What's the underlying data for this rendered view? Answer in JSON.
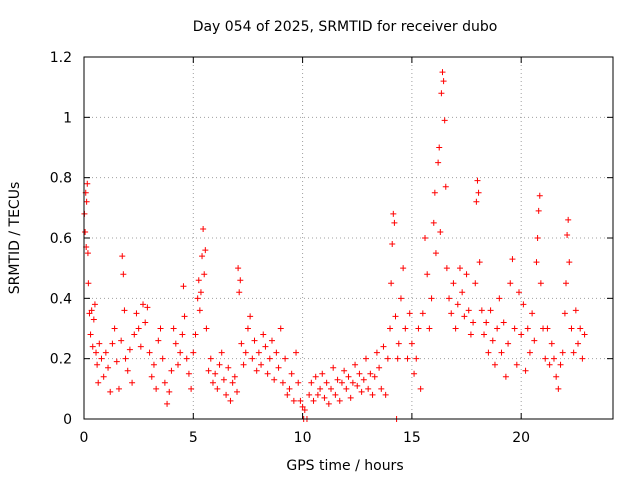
{
  "chart_data": {
    "type": "scatter",
    "title": "Day 054 of 2025, SRMTID for receiver dubo",
    "xlabel": "GPS time / hours",
    "ylabel": "SRMTID / TECUs",
    "xlim": [
      0,
      24.2
    ],
    "ylim": [
      0,
      1.2
    ],
    "x_ticks": [
      0,
      5,
      10,
      15,
      20
    ],
    "x_tick_labels": [
      "0",
      "5",
      "10",
      "15",
      "20"
    ],
    "y_ticks": [
      0,
      0.2,
      0.4,
      0.6,
      0.8,
      1.0,
      1.2
    ],
    "y_tick_labels": [
      "0",
      "0.2",
      "0.4",
      "0.6",
      "0.8",
      "1",
      "1.2"
    ],
    "grid": true,
    "marker": "+",
    "color": "#ff0000",
    "series": [
      {
        "name": "SRMTID",
        "points": [
          [
            0.02,
            0.68
          ],
          [
            0.05,
            0.62
          ],
          [
            0.08,
            0.75
          ],
          [
            0.1,
            0.57
          ],
          [
            0.12,
            0.72
          ],
          [
            0.15,
            0.78
          ],
          [
            0.18,
            0.55
          ],
          [
            0.2,
            0.45
          ],
          [
            0.25,
            0.35
          ],
          [
            0.3,
            0.28
          ],
          [
            0.35,
            0.36
          ],
          [
            0.4,
            0.24
          ],
          [
            0.45,
            0.33
          ],
          [
            0.5,
            0.38
          ],
          [
            0.55,
            0.22
          ],
          [
            0.6,
            0.18
          ],
          [
            0.65,
            0.12
          ],
          [
            0.7,
            0.25
          ],
          [
            0.8,
            0.2
          ],
          [
            0.9,
            0.14
          ],
          [
            1.0,
            0.22
          ],
          [
            1.1,
            0.17
          ],
          [
            1.2,
            0.09
          ],
          [
            1.3,
            0.25
          ],
          [
            1.4,
            0.3
          ],
          [
            1.5,
            0.19
          ],
          [
            1.6,
            0.1
          ],
          [
            1.7,
            0.26
          ],
          [
            1.75,
            0.54
          ],
          [
            1.8,
            0.48
          ],
          [
            1.85,
            0.36
          ],
          [
            1.9,
            0.2
          ],
          [
            2.0,
            0.16
          ],
          [
            2.1,
            0.23
          ],
          [
            2.2,
            0.12
          ],
          [
            2.3,
            0.28
          ],
          [
            2.4,
            0.35
          ],
          [
            2.5,
            0.3
          ],
          [
            2.6,
            0.24
          ],
          [
            2.7,
            0.38
          ],
          [
            2.8,
            0.32
          ],
          [
            2.9,
            0.37
          ],
          [
            3.0,
            0.22
          ],
          [
            3.1,
            0.14
          ],
          [
            3.2,
            0.18
          ],
          [
            3.3,
            0.1
          ],
          [
            3.4,
            0.26
          ],
          [
            3.5,
            0.3
          ],
          [
            3.6,
            0.2
          ],
          [
            3.7,
            0.12
          ],
          [
            3.8,
            0.05
          ],
          [
            3.9,
            0.09
          ],
          [
            4.0,
            0.16
          ],
          [
            4.1,
            0.3
          ],
          [
            4.2,
            0.25
          ],
          [
            4.3,
            0.18
          ],
          [
            4.4,
            0.22
          ],
          [
            4.5,
            0.28
          ],
          [
            4.55,
            0.44
          ],
          [
            4.6,
            0.34
          ],
          [
            4.7,
            0.2
          ],
          [
            4.8,
            0.15
          ],
          [
            4.9,
            0.1
          ],
          [
            5.0,
            0.22
          ],
          [
            5.1,
            0.28
          ],
          [
            5.2,
            0.4
          ],
          [
            5.25,
            0.46
          ],
          [
            5.3,
            0.36
          ],
          [
            5.35,
            0.42
          ],
          [
            5.4,
            0.54
          ],
          [
            5.45,
            0.63
          ],
          [
            5.5,
            0.48
          ],
          [
            5.55,
            0.56
          ],
          [
            5.6,
            0.3
          ],
          [
            5.7,
            0.16
          ],
          [
            5.8,
            0.2
          ],
          [
            5.9,
            0.12
          ],
          [
            6.0,
            0.15
          ],
          [
            6.1,
            0.1
          ],
          [
            6.2,
            0.18
          ],
          [
            6.3,
            0.22
          ],
          [
            6.4,
            0.13
          ],
          [
            6.5,
            0.08
          ],
          [
            6.6,
            0.17
          ],
          [
            6.7,
            0.06
          ],
          [
            6.8,
            0.12
          ],
          [
            6.9,
            0.14
          ],
          [
            7.0,
            0.09
          ],
          [
            7.05,
            0.5
          ],
          [
            7.1,
            0.42
          ],
          [
            7.15,
            0.46
          ],
          [
            7.2,
            0.25
          ],
          [
            7.3,
            0.18
          ],
          [
            7.4,
            0.22
          ],
          [
            7.5,
            0.3
          ],
          [
            7.6,
            0.34
          ],
          [
            7.7,
            0.2
          ],
          [
            7.8,
            0.26
          ],
          [
            7.9,
            0.16
          ],
          [
            8.0,
            0.22
          ],
          [
            8.1,
            0.18
          ],
          [
            8.2,
            0.28
          ],
          [
            8.3,
            0.24
          ],
          [
            8.4,
            0.15
          ],
          [
            8.5,
            0.2
          ],
          [
            8.6,
            0.26
          ],
          [
            8.7,
            0.13
          ],
          [
            8.8,
            0.22
          ],
          [
            8.9,
            0.17
          ],
          [
            9.0,
            0.3
          ],
          [
            9.1,
            0.12
          ],
          [
            9.2,
            0.2
          ],
          [
            9.3,
            0.08
          ],
          [
            9.4,
            0.1
          ],
          [
            9.5,
            0.15
          ],
          [
            9.6,
            0.06
          ],
          [
            9.7,
            0.22
          ],
          [
            9.8,
            0.12
          ],
          [
            9.9,
            0.06
          ],
          [
            10.0,
            0.04
          ],
          [
            10.05,
            0.0
          ],
          [
            10.1,
            0.03
          ],
          [
            10.2,
            0.0
          ],
          [
            10.3,
            0.08
          ],
          [
            10.4,
            0.12
          ],
          [
            10.5,
            0.06
          ],
          [
            10.6,
            0.14
          ],
          [
            10.7,
            0.08
          ],
          [
            10.8,
            0.1
          ],
          [
            10.9,
            0.15
          ],
          [
            11.0,
            0.07
          ],
          [
            11.1,
            0.12
          ],
          [
            11.2,
            0.05
          ],
          [
            11.3,
            0.1
          ],
          [
            11.4,
            0.17
          ],
          [
            11.5,
            0.08
          ],
          [
            11.6,
            0.13
          ],
          [
            11.7,
            0.06
          ],
          [
            11.8,
            0.12
          ],
          [
            11.9,
            0.16
          ],
          [
            12.0,
            0.1
          ],
          [
            12.1,
            0.14
          ],
          [
            12.2,
            0.07
          ],
          [
            12.3,
            0.12
          ],
          [
            12.4,
            0.18
          ],
          [
            12.5,
            0.11
          ],
          [
            12.6,
            0.15
          ],
          [
            12.7,
            0.09
          ],
          [
            12.8,
            0.13
          ],
          [
            12.9,
            0.2
          ],
          [
            13.0,
            0.1
          ],
          [
            13.1,
            0.15
          ],
          [
            13.2,
            0.08
          ],
          [
            13.3,
            0.14
          ],
          [
            13.4,
            0.22
          ],
          [
            13.5,
            0.17
          ],
          [
            13.6,
            0.1
          ],
          [
            13.7,
            0.24
          ],
          [
            13.8,
            0.08
          ],
          [
            13.9,
            0.2
          ],
          [
            14.0,
            0.3
          ],
          [
            14.05,
            0.45
          ],
          [
            14.1,
            0.58
          ],
          [
            14.15,
            0.68
          ],
          [
            14.2,
            0.65
          ],
          [
            14.25,
            0.34
          ],
          [
            14.3,
            0.0
          ],
          [
            14.35,
            0.2
          ],
          [
            14.4,
            0.25
          ],
          [
            14.5,
            0.4
          ],
          [
            14.6,
            0.5
          ],
          [
            14.7,
            0.3
          ],
          [
            14.8,
            0.2
          ],
          [
            14.9,
            0.35
          ],
          [
            15.0,
            0.25
          ],
          [
            15.1,
            0.15
          ],
          [
            15.2,
            0.2
          ],
          [
            15.3,
            0.3
          ],
          [
            15.4,
            0.1
          ],
          [
            15.5,
            0.35
          ],
          [
            15.6,
            0.6
          ],
          [
            15.7,
            0.48
          ],
          [
            15.8,
            0.3
          ],
          [
            15.9,
            0.4
          ],
          [
            16.0,
            0.65
          ],
          [
            16.05,
            0.75
          ],
          [
            16.1,
            0.55
          ],
          [
            16.2,
            0.85
          ],
          [
            16.25,
            0.9
          ],
          [
            16.3,
            0.62
          ],
          [
            16.35,
            1.08
          ],
          [
            16.4,
            1.15
          ],
          [
            16.45,
            1.12
          ],
          [
            16.5,
            0.99
          ],
          [
            16.55,
            0.77
          ],
          [
            16.6,
            0.5
          ],
          [
            16.7,
            0.4
          ],
          [
            16.8,
            0.35
          ],
          [
            16.9,
            0.45
          ],
          [
            17.0,
            0.3
          ],
          [
            17.1,
            0.38
          ],
          [
            17.2,
            0.5
          ],
          [
            17.3,
            0.42
          ],
          [
            17.4,
            0.34
          ],
          [
            17.5,
            0.48
          ],
          [
            17.6,
            0.36
          ],
          [
            17.7,
            0.28
          ],
          [
            17.8,
            0.32
          ],
          [
            17.9,
            0.45
          ],
          [
            17.95,
            0.72
          ],
          [
            18.0,
            0.79
          ],
          [
            18.05,
            0.75
          ],
          [
            18.1,
            0.52
          ],
          [
            18.2,
            0.36
          ],
          [
            18.3,
            0.28
          ],
          [
            18.4,
            0.32
          ],
          [
            18.5,
            0.22
          ],
          [
            18.6,
            0.36
          ],
          [
            18.7,
            0.26
          ],
          [
            18.8,
            0.18
          ],
          [
            18.9,
            0.3
          ],
          [
            19.0,
            0.4
          ],
          [
            19.1,
            0.22
          ],
          [
            19.2,
            0.32
          ],
          [
            19.3,
            0.14
          ],
          [
            19.4,
            0.25
          ],
          [
            19.5,
            0.45
          ],
          [
            19.6,
            0.53
          ],
          [
            19.7,
            0.3
          ],
          [
            19.8,
            0.18
          ],
          [
            19.9,
            0.42
          ],
          [
            20.0,
            0.28
          ],
          [
            20.1,
            0.38
          ],
          [
            20.2,
            0.16
          ],
          [
            20.3,
            0.3
          ],
          [
            20.4,
            0.22
          ],
          [
            20.5,
            0.35
          ],
          [
            20.6,
            0.26
          ],
          [
            20.7,
            0.52
          ],
          [
            20.75,
            0.6
          ],
          [
            20.8,
            0.69
          ],
          [
            20.85,
            0.74
          ],
          [
            20.9,
            0.45
          ],
          [
            21.0,
            0.3
          ],
          [
            21.1,
            0.2
          ],
          [
            21.2,
            0.3
          ],
          [
            21.3,
            0.18
          ],
          [
            21.4,
            0.25
          ],
          [
            21.5,
            0.2
          ],
          [
            21.6,
            0.14
          ],
          [
            21.7,
            0.1
          ],
          [
            21.8,
            0.18
          ],
          [
            21.9,
            0.22
          ],
          [
            22.0,
            0.35
          ],
          [
            22.05,
            0.45
          ],
          [
            22.1,
            0.61
          ],
          [
            22.15,
            0.66
          ],
          [
            22.2,
            0.52
          ],
          [
            22.3,
            0.3
          ],
          [
            22.4,
            0.22
          ],
          [
            22.5,
            0.36
          ],
          [
            22.6,
            0.25
          ],
          [
            22.7,
            0.3
          ],
          [
            22.8,
            0.2
          ],
          [
            22.9,
            0.28
          ]
        ]
      }
    ]
  }
}
